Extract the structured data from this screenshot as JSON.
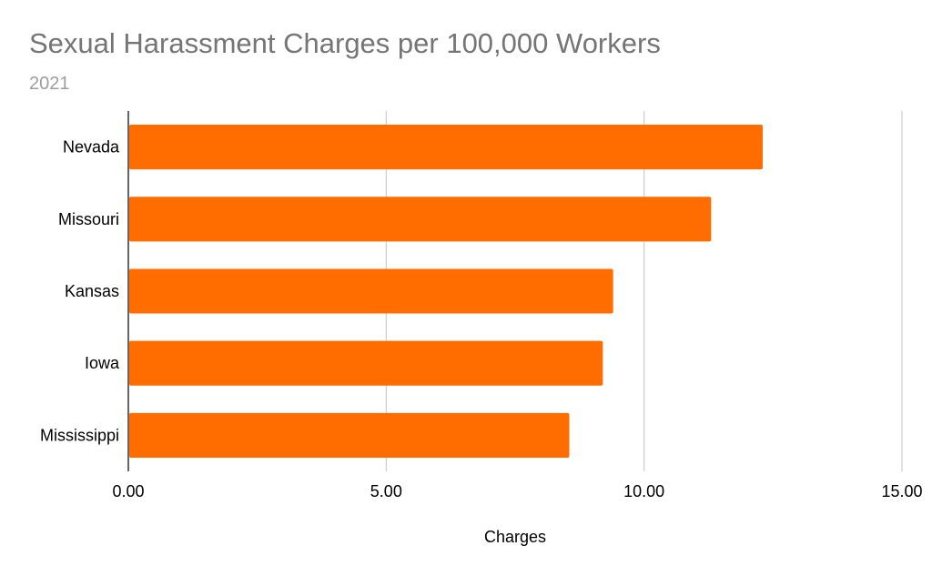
{
  "chart_data": {
    "type": "bar",
    "orientation": "horizontal",
    "title": "Sexual Harassment Charges per 100,000 Workers",
    "subtitle": "2021",
    "xlabel": "Charges",
    "ylabel": "",
    "categories": [
      "Nevada",
      "Missouri",
      "Kansas",
      "Iowa",
      "Mississippi"
    ],
    "values": [
      12.3,
      11.3,
      9.4,
      9.2,
      8.55
    ],
    "xlim": [
      0,
      15
    ],
    "xticks": [
      "0.00",
      "5.00",
      "10.00",
      "15.00"
    ],
    "grid": true,
    "legend": "none",
    "bar_color": "#ff6d01"
  }
}
